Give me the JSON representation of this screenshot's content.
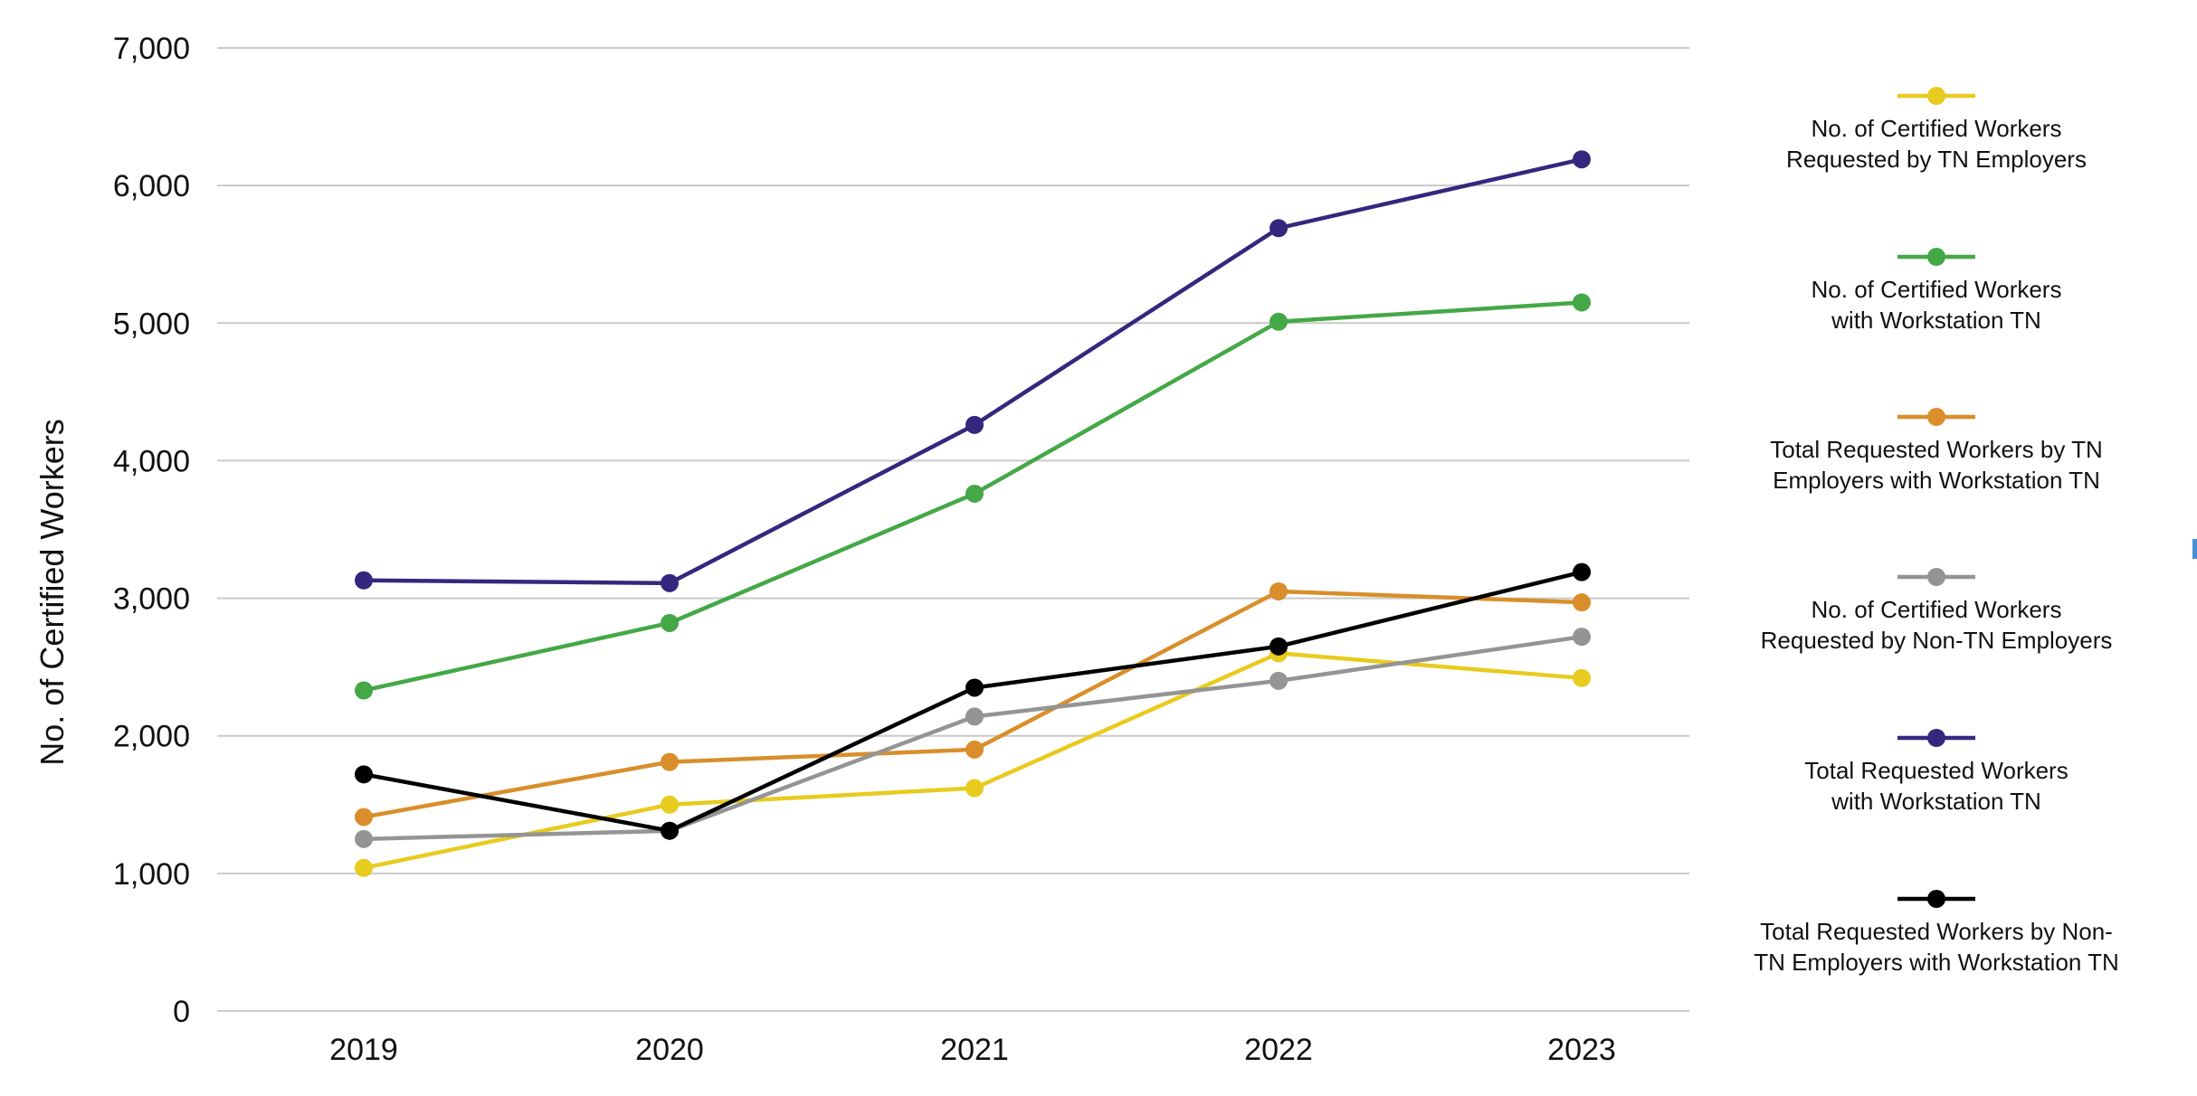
{
  "chart_data": {
    "type": "line",
    "title": "",
    "xlabel": "",
    "ylabel": "No. of Certified Workers",
    "categories": [
      "2019",
      "2020",
      "2021",
      "2022",
      "2023"
    ],
    "ylim": [
      0,
      7000
    ],
    "yticks": [
      0,
      1000,
      2000,
      3000,
      4000,
      5000,
      6000,
      7000
    ],
    "ytick_labels": [
      "0",
      "1,000",
      "2,000",
      "3,000",
      "4,000",
      "5,000",
      "6,000",
      "7,000"
    ],
    "grid": "horizontal",
    "legend_position": "right",
    "series": [
      {
        "name": "No. of Certified Workers Requested by TN Employers",
        "legend_lines": [
          "No. of Certified Workers",
          "Requested by TN Employers"
        ],
        "color": "#e8cb1f",
        "values": [
          1040,
          1500,
          1620,
          2600,
          2420
        ]
      },
      {
        "name": "No. of Certified Workers with Workstation TN",
        "legend_lines": [
          "No. of Certified Workers",
          "with Workstation TN"
        ],
        "color": "#44a847",
        "values": [
          2330,
          2820,
          3760,
          5010,
          5150
        ]
      },
      {
        "name": "Total Requested Workers by TN Employers with Workstation TN",
        "legend_lines": [
          "Total Requested Workers by TN",
          "Employers with Workstation TN"
        ],
        "color": "#d98e2b",
        "values": [
          1410,
          1810,
          1900,
          3050,
          2970
        ]
      },
      {
        "name": "No. of Certified Workers Requested by Non-TN Employers",
        "legend_lines": [
          "No. of Certified Workers",
          "Requested by Non-TN Employers"
        ],
        "color": "#949494",
        "values": [
          1250,
          1310,
          2140,
          2400,
          2720
        ]
      },
      {
        "name": "Total Requested Workers with Workstation TN",
        "legend_lines": [
          "Total Requested Workers",
          "with Workstation TN"
        ],
        "color": "#33287e",
        "values": [
          3130,
          3110,
          4260,
          5690,
          6190
        ]
      },
      {
        "name": "Total Requested Workers by Non-TN Employers with Workstation TN",
        "legend_lines": [
          "Total Requested Workers by Non-",
          "TN Employers with Workstation TN"
        ],
        "color": "#000000",
        "values": [
          1720,
          1310,
          2350,
          2650,
          3190
        ]
      }
    ]
  }
}
